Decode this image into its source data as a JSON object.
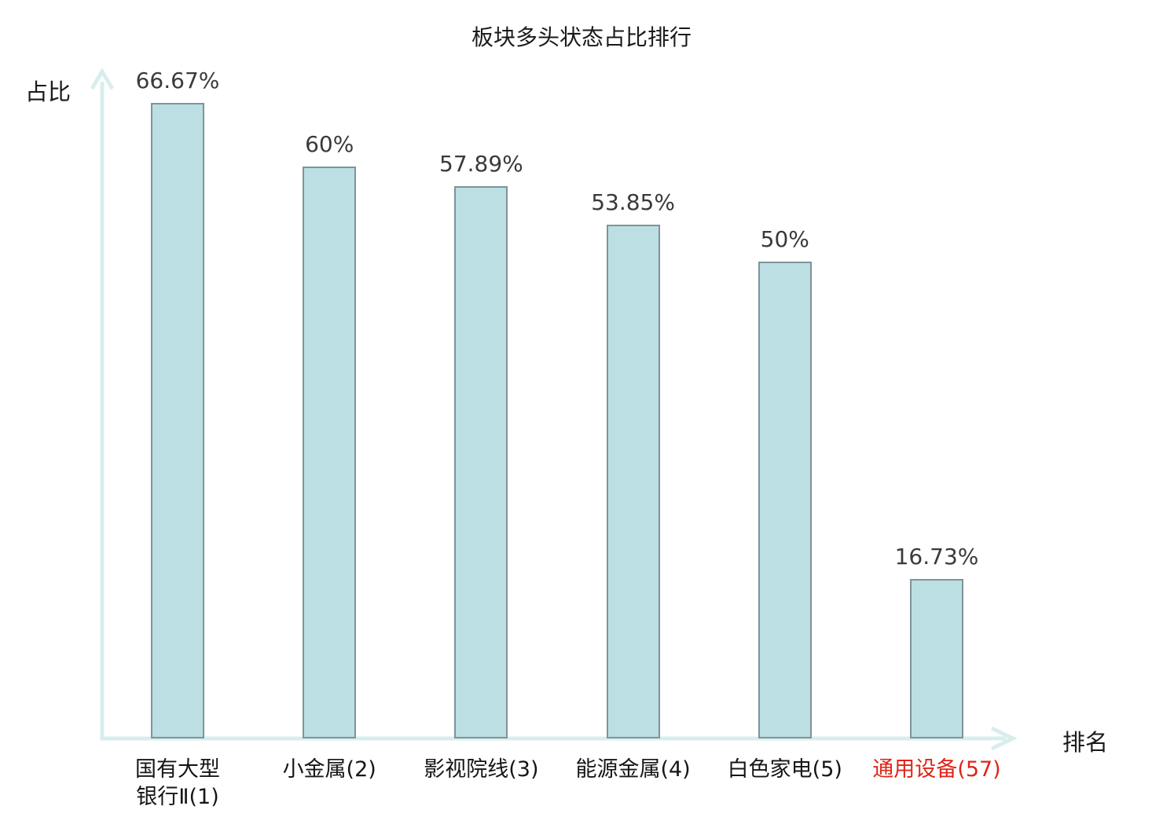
{
  "chart_data": {
    "type": "bar",
    "title": "板块多头状态占比排行",
    "xlabel": "排名",
    "ylabel": "占比",
    "categories": [
      "国有大型银行Ⅱ(1)",
      "小金属(2)",
      "影视院线(3)",
      "能源金属(4)",
      "白色家电(5)",
      "通用设备(57)"
    ],
    "category_lines": [
      [
        "国有大型",
        "银行Ⅱ(1)"
      ],
      [
        "小金属(2)"
      ],
      [
        "影视院线(3)"
      ],
      [
        "能源金属(4)"
      ],
      [
        "白色家电(5)"
      ],
      [
        "通用设备(57)"
      ]
    ],
    "values": [
      66.67,
      60,
      57.89,
      53.85,
      50,
      16.73
    ],
    "value_labels": [
      "66.67%",
      "60%",
      "57.89%",
      "53.85%",
      "50%",
      "16.73%"
    ],
    "highlight_index": 5,
    "ylim": [
      0,
      70
    ],
    "grid": false,
    "legend": false,
    "colors": {
      "bar_fill": "#bcdfe3",
      "bar_border": "#7d9499",
      "axis": "#d9eded",
      "value_text": "#3a3a3a",
      "tick_text": "#161616",
      "highlight": "#e02418",
      "title_text": "#1a1a1a"
    }
  }
}
